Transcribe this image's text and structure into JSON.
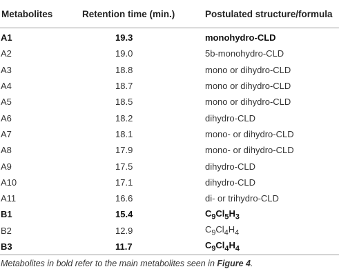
{
  "table": {
    "headers": [
      "Metabolites",
      "Retention time (min.)",
      "Postulated structure/formula"
    ],
    "rows": [
      {
        "metabolite": "A1",
        "retention": "19.3",
        "structure": "monohydro-CLD",
        "bold": true
      },
      {
        "metabolite": "A2",
        "retention": "19.0",
        "structure": "5b-monohydro-CLD",
        "bold": false
      },
      {
        "metabolite": "A3",
        "retention": "18.8",
        "structure": "mono or dihydro-CLD",
        "bold": false
      },
      {
        "metabolite": "A4",
        "retention": "18.7",
        "structure": "mono or dihydro-CLD",
        "bold": false
      },
      {
        "metabolite": "A5",
        "retention": "18.5",
        "structure": "mono or dihydro-CLD",
        "bold": false
      },
      {
        "metabolite": "A6",
        "retention": "18.2",
        "structure": "dihydro-CLD",
        "bold": false
      },
      {
        "metabolite": "A7",
        "retention": "18.1",
        "structure": "mono- or dihydro-CLD",
        "bold": false
      },
      {
        "metabolite": "A8",
        "retention": "17.9",
        "structure": "mono- or dihydro-CLD",
        "bold": false
      },
      {
        "metabolite": "A9",
        "retention": "17.5",
        "structure": "dihydro-CLD",
        "bold": false
      },
      {
        "metabolite": "A10",
        "retention": "17.1",
        "structure": "dihydro-CLD",
        "bold": false
      },
      {
        "metabolite": "A11",
        "retention": "16.6",
        "structure": "di- or trihydro-CLD",
        "bold": false
      },
      {
        "metabolite": "B1",
        "retention": "15.4",
        "structure": "C<sub>9</sub>Cl<sub>5</sub>H<sub>3</sub>",
        "bold": true
      },
      {
        "metabolite": "B2",
        "retention": "12.9",
        "structure": "C<sub>9</sub>Cl<sub>4</sub>H<sub>4</sub>",
        "bold": false
      },
      {
        "metabolite": "B3",
        "retention": "11.7",
        "structure": "C<sub>9</sub>Cl<sub>4</sub>H<sub>4</sub>",
        "bold": true
      }
    ]
  },
  "footnote": {
    "text": "Metabolites in bold refer to the main metabolites seen in ",
    "figure_ref": "Figure 4",
    "end": "."
  }
}
